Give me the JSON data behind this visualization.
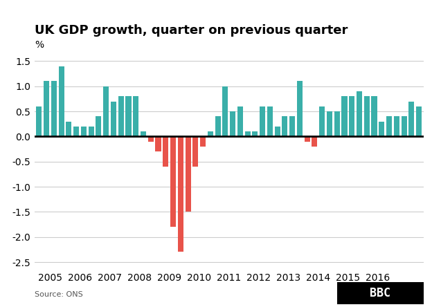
{
  "title": "UK GDP growth, quarter on previous quarter",
  "ylabel": "%",
  "source": "Source: ONS",
  "bar_color_positive": "#3aafa9",
  "bar_color_negative": "#e8534a",
  "background_color": "#ffffff",
  "grid_color": "#cccccc",
  "ylim": [
    -2.6,
    1.8
  ],
  "yticks": [
    -2.5,
    -2.0,
    -1.5,
    -1.0,
    -0.5,
    0.0,
    0.5,
    1.0,
    1.5
  ],
  "values": [
    0.6,
    1.1,
    1.1,
    1.4,
    0.3,
    0.2,
    0.2,
    0.2,
    0.4,
    1.0,
    0.7,
    0.8,
    0.8,
    0.8,
    0.1,
    -0.1,
    -0.3,
    -0.6,
    -1.8,
    -2.3,
    -1.5,
    -0.6,
    -0.2,
    0.1,
    0.4,
    1.0,
    0.5,
    0.6,
    0.1,
    0.1,
    0.6,
    0.6,
    0.2,
    0.4,
    0.4,
    1.1,
    -0.1,
    -0.2,
    0.6,
    0.5,
    0.5,
    0.8,
    0.8,
    0.9,
    0.8,
    0.8,
    0.3,
    0.4,
    0.4,
    0.4,
    0.7,
    0.6
  ],
  "x_year_labels": [
    "2005",
    "2006",
    "2007",
    "2008",
    "2009",
    "2010",
    "2011",
    "2012",
    "2013",
    "2014",
    "2015",
    "2016"
  ],
  "tick_fontsize": 10,
  "title_fontsize": 13
}
